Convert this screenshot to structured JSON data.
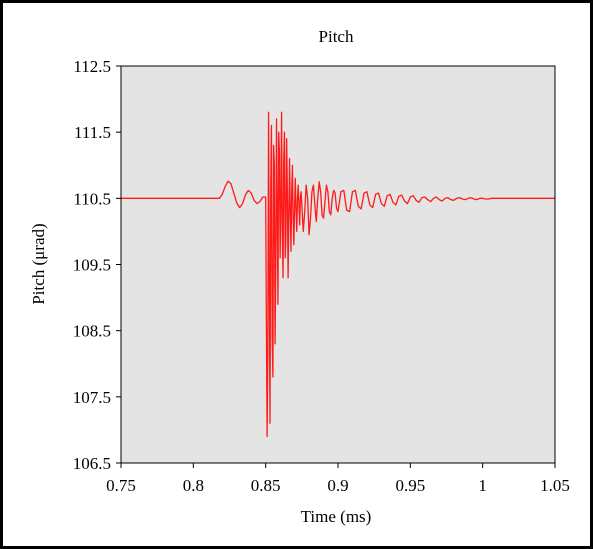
{
  "chart_data": {
    "type": "line",
    "title": "Pitch",
    "xlabel": "Time (ms)",
    "ylabel": "Pitch (μrad)",
    "xlim": [
      0.75,
      1.05
    ],
    "ylim": [
      106.5,
      112.5
    ],
    "x_ticks": [
      "0.75",
      "0.8",
      "0.85",
      "0.9",
      "0.95",
      "1",
      "1.05"
    ],
    "y_ticks": [
      "112.5",
      "111.5",
      "110.5",
      "109.5",
      "108.5",
      "107.5",
      "106.5"
    ],
    "grid": false,
    "plot_background": "#e4e4e4",
    "series": [
      {
        "color": "#ff1a1a",
        "x": [
          0.75,
          0.818,
          0.82,
          0.822,
          0.824,
          0.826,
          0.828,
          0.83,
          0.832,
          0.834,
          0.836,
          0.838,
          0.84,
          0.842,
          0.844,
          0.846,
          0.848,
          0.85,
          0.8505,
          0.851,
          0.8515,
          0.852,
          0.8525,
          0.853,
          0.8535,
          0.854,
          0.8545,
          0.855,
          0.8555,
          0.856,
          0.8565,
          0.857,
          0.8575,
          0.858,
          0.8585,
          0.859,
          0.8595,
          0.86,
          0.8605,
          0.861,
          0.8615,
          0.862,
          0.8625,
          0.863,
          0.8635,
          0.864,
          0.8645,
          0.865,
          0.8655,
          0.866,
          0.8665,
          0.867,
          0.8675,
          0.868,
          0.8685,
          0.869,
          0.8695,
          0.87,
          0.8705,
          0.871,
          0.8715,
          0.872,
          0.8725,
          0.873,
          0.8735,
          0.874,
          0.8745,
          0.875,
          0.876,
          0.877,
          0.878,
          0.879,
          0.88,
          0.881,
          0.882,
          0.883,
          0.884,
          0.885,
          0.886,
          0.887,
          0.888,
          0.889,
          0.89,
          0.891,
          0.892,
          0.893,
          0.894,
          0.895,
          0.896,
          0.897,
          0.898,
          0.899,
          0.9,
          0.901,
          0.902,
          0.904,
          0.906,
          0.908,
          0.91,
          0.912,
          0.914,
          0.916,
          0.918,
          0.92,
          0.922,
          0.924,
          0.926,
          0.928,
          0.93,
          0.932,
          0.934,
          0.936,
          0.938,
          0.94,
          0.942,
          0.944,
          0.946,
          0.948,
          0.95,
          0.952,
          0.954,
          0.956,
          0.958,
          0.96,
          0.962,
          0.964,
          0.966,
          0.968,
          0.97,
          0.972,
          0.974,
          0.976,
          0.978,
          0.98,
          0.982,
          0.984,
          0.986,
          0.988,
          0.99,
          0.992,
          0.994,
          0.996,
          0.998,
          1.0,
          1.002,
          1.004,
          1.006,
          1.008,
          1.01,
          1.05
        ],
        "y": [
          110.5,
          110.5,
          110.56,
          110.68,
          110.76,
          110.72,
          110.58,
          110.43,
          110.36,
          110.42,
          110.55,
          110.62,
          110.58,
          110.47,
          110.42,
          110.45,
          110.52,
          110.52,
          108.6,
          106.9,
          108.2,
          111.8,
          109.2,
          107.1,
          110.6,
          111.6,
          108.4,
          107.8,
          111.3,
          111.0,
          108.3,
          109.5,
          111.7,
          110.2,
          108.9,
          111.5,
          111.2,
          109.6,
          110.4,
          111.8,
          110.0,
          109.3,
          111.1,
          111.5,
          109.6,
          109.9,
          111.4,
          110.6,
          109.3,
          110.2,
          111.1,
          110.3,
          109.7,
          110.6,
          111.0,
          110.2,
          109.8,
          110.4,
          110.8,
          110.3,
          110.0,
          110.5,
          110.7,
          110.4,
          110.1,
          110.5,
          110.6,
          110.4,
          110.0,
          110.3,
          110.7,
          110.5,
          109.95,
          110.2,
          110.6,
          110.7,
          110.4,
          110.15,
          110.5,
          110.75,
          110.6,
          110.25,
          110.2,
          110.45,
          110.7,
          110.6,
          110.3,
          110.25,
          110.5,
          110.62,
          110.58,
          110.35,
          110.3,
          110.45,
          110.6,
          110.62,
          110.32,
          110.3,
          110.6,
          110.62,
          110.38,
          110.34,
          110.58,
          110.6,
          110.4,
          110.36,
          110.56,
          110.58,
          110.42,
          110.38,
          110.54,
          110.56,
          110.44,
          110.4,
          110.53,
          110.55,
          110.46,
          110.42,
          110.52,
          110.54,
          110.47,
          110.44,
          110.51,
          110.52,
          110.48,
          110.45,
          110.5,
          110.52,
          110.48,
          110.46,
          110.5,
          110.51,
          110.48,
          110.47,
          110.5,
          110.51,
          110.49,
          110.48,
          110.5,
          110.51,
          110.49,
          110.48,
          110.5,
          110.5,
          110.49,
          110.49,
          110.5,
          110.5,
          110.5,
          110.5
        ]
      }
    ]
  }
}
